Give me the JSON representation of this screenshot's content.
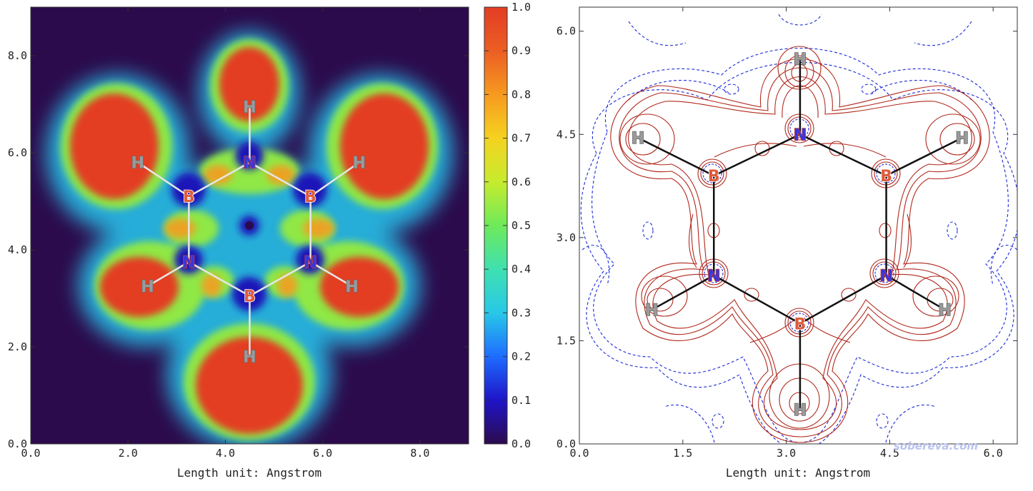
{
  "chart_data": [
    {
      "type": "heatmap",
      "xlabel": "Length unit: Angstrom",
      "ylabel": "",
      "xlim": [
        0,
        9
      ],
      "ylim": [
        0,
        9
      ],
      "xticks": [
        "0.0",
        "2.0",
        "4.0",
        "6.0",
        "8.0"
      ],
      "xtick_values": [
        0,
        2,
        4,
        6,
        8
      ],
      "yticks": [
        "0.0",
        "2.0",
        "4.0",
        "6.0",
        "8.0"
      ],
      "ytick_values": [
        0,
        2,
        4,
        6,
        8
      ],
      "colorbar": {
        "range": [
          0,
          1
        ],
        "ticks": [
          "0.0",
          "0.1",
          "0.2",
          "0.3",
          "0.4",
          "0.5",
          "0.6",
          "0.7",
          "0.8",
          "0.9",
          "1.0"
        ],
        "tick_values": [
          0,
          0.1,
          0.2,
          0.3,
          0.4,
          0.5,
          0.6,
          0.7,
          0.8,
          0.9,
          1.0
        ],
        "colormap": [
          "#2c0b4c",
          "#1f14c8",
          "#1e6cff",
          "#28c8e8",
          "#3fe0b0",
          "#6eea5a",
          "#c7ec2e",
          "#f5d21f",
          "#f79a20",
          "#ec5e24",
          "#e33d24"
        ]
      },
      "bond_color": "#e6e6e6",
      "atoms": [
        {
          "label": "H",
          "x": 4.5,
          "y": 6.95
        },
        {
          "label": "N",
          "x": 4.5,
          "y": 5.8
        },
        {
          "label": "H",
          "x": 2.2,
          "y": 5.8
        },
        {
          "label": "H",
          "x": 6.75,
          "y": 5.8
        },
        {
          "label": "B",
          "x": 3.25,
          "y": 5.1
        },
        {
          "label": "B",
          "x": 5.75,
          "y": 5.1
        },
        {
          "label": "N",
          "x": 3.25,
          "y": 3.75
        },
        {
          "label": "N",
          "x": 5.75,
          "y": 3.75
        },
        {
          "label": "H",
          "x": 2.4,
          "y": 3.25
        },
        {
          "label": "H",
          "x": 6.6,
          "y": 3.25
        },
        {
          "label": "B",
          "x": 4.5,
          "y": 3.05
        },
        {
          "label": "H",
          "x": 4.5,
          "y": 1.8
        }
      ],
      "bonds": [
        [
          1,
          0
        ],
        [
          1,
          4
        ],
        [
          1,
          5
        ],
        [
          4,
          2
        ],
        [
          5,
          3
        ],
        [
          4,
          6
        ],
        [
          5,
          7
        ],
        [
          6,
          8
        ],
        [
          7,
          9
        ],
        [
          6,
          10
        ],
        [
          7,
          10
        ],
        [
          10,
          11
        ]
      ]
    },
    {
      "type": "contour",
      "xlabel": "Length unit: Angstrom",
      "ylabel": "",
      "xlim": [
        0,
        6.35
      ],
      "ylim": [
        0,
        6.35
      ],
      "xticks": [
        "0.0",
        "1.5",
        "3.0",
        "4.5",
        "6.0"
      ],
      "xtick_values": [
        0,
        1.5,
        3.0,
        4.5,
        6.0
      ],
      "yticks": [
        "0.0",
        "1.5",
        "3.0",
        "4.5",
        "6.0"
      ],
      "ytick_values": [
        0,
        1.5,
        3.0,
        4.5,
        6.0
      ],
      "positive_contour_color": "#b0281c",
      "negative_contour_color": "#1c2bd8",
      "bond_color": "#111111",
      "atoms": [
        {
          "label": "H",
          "x": 3.2,
          "y": 5.6
        },
        {
          "label": "N",
          "x": 3.2,
          "y": 4.5
        },
        {
          "label": "H",
          "x": 0.85,
          "y": 4.45
        },
        {
          "label": "H",
          "x": 5.55,
          "y": 4.45
        },
        {
          "label": "B",
          "x": 1.95,
          "y": 3.9
        },
        {
          "label": "B",
          "x": 4.45,
          "y": 3.9
        },
        {
          "label": "N",
          "x": 1.95,
          "y": 2.45
        },
        {
          "label": "N",
          "x": 4.45,
          "y": 2.45
        },
        {
          "label": "H",
          "x": 1.05,
          "y": 1.95
        },
        {
          "label": "H",
          "x": 5.3,
          "y": 1.95
        },
        {
          "label": "B",
          "x": 3.2,
          "y": 1.75
        },
        {
          "label": "H",
          "x": 3.2,
          "y": 0.5
        }
      ],
      "bonds": [
        [
          1,
          0
        ],
        [
          1,
          4
        ],
        [
          1,
          5
        ],
        [
          4,
          2
        ],
        [
          5,
          3
        ],
        [
          4,
          6
        ],
        [
          5,
          7
        ],
        [
          6,
          8
        ],
        [
          7,
          9
        ],
        [
          6,
          10
        ],
        [
          7,
          10
        ],
        [
          10,
          11
        ]
      ]
    }
  ],
  "watermark": "sobereva.com",
  "atom_colors": {
    "H": "#9a9a9a",
    "B": "#e05a3c",
    "N": "#3a36d8"
  }
}
